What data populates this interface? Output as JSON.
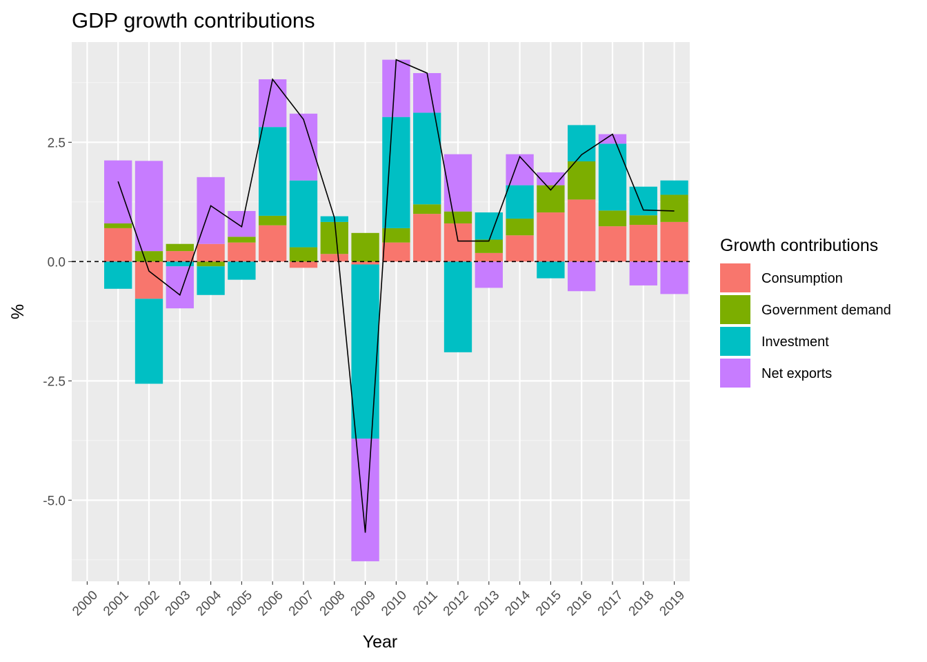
{
  "chart_data": {
    "type": "bar",
    "stacked": true,
    "title": "GDP growth contributions",
    "xlabel": "Year",
    "ylabel": "%",
    "categories": [
      "2000",
      "2001",
      "2002",
      "2003",
      "2004",
      "2005",
      "2006",
      "2007",
      "2008",
      "2009",
      "2010",
      "2011",
      "2012",
      "2013",
      "2014",
      "2015",
      "2016",
      "2017",
      "2018",
      "2019"
    ],
    "x_ticks": [
      "2000",
      "2001",
      "2002",
      "2003",
      "2004",
      "2005",
      "2006",
      "2007",
      "2008",
      "2009",
      "2010",
      "2011",
      "2012",
      "2013",
      "2014",
      "2015",
      "2016",
      "2017",
      "2018",
      "2019"
    ],
    "y_ticks": [
      {
        "value": -5.0,
        "label": "-5.0"
      },
      {
        "value": -2.5,
        "label": "-2.5"
      },
      {
        "value": 0.0,
        "label": "0.0"
      },
      {
        "value": 2.5,
        "label": "2.5"
      }
    ],
    "ylim": [
      -6.7,
      4.6
    ],
    "grid": true,
    "legend": {
      "title": "Growth contributions",
      "position": "right"
    },
    "series": [
      {
        "name": "Consumption",
        "color": "#F8766D",
        "values": [
          null,
          0.7,
          -0.78,
          0.22,
          0.37,
          0.4,
          0.76,
          -0.13,
          0.16,
          -0.06,
          0.4,
          1.0,
          0.8,
          0.18,
          0.55,
          1.03,
          1.3,
          0.74,
          0.77,
          0.83
        ]
      },
      {
        "name": "Government demand",
        "color": "#7CAE00",
        "values": [
          null,
          0.1,
          0.22,
          0.15,
          -0.1,
          0.12,
          0.2,
          0.3,
          0.67,
          0.6,
          0.3,
          0.2,
          0.25,
          0.28,
          0.35,
          0.57,
          0.8,
          0.33,
          0.2,
          0.57
        ]
      },
      {
        "name": "Investment",
        "color": "#00BFC4",
        "values": [
          null,
          -0.57,
          -1.78,
          -0.1,
          -0.6,
          -0.38,
          1.86,
          1.4,
          0.12,
          -3.65,
          2.33,
          1.92,
          -1.9,
          0.57,
          0.7,
          -0.35,
          0.76,
          1.4,
          0.6,
          0.3
        ]
      },
      {
        "name": "Net exports",
        "color": "#C77CFF",
        "values": [
          null,
          1.32,
          1.89,
          -0.88,
          1.4,
          0.54,
          1.0,
          1.4,
          0.0,
          -2.57,
          1.2,
          0.83,
          1.2,
          -0.55,
          0.65,
          0.27,
          -0.62,
          0.2,
          -0.5,
          -0.68
        ]
      }
    ],
    "total_line": {
      "color": "#000000",
      "values": [
        null,
        1.68,
        -0.2,
        -0.7,
        1.17,
        0.73,
        3.82,
        2.98,
        0.92,
        -5.68,
        4.23,
        3.95,
        0.43,
        0.43,
        2.2,
        1.5,
        2.24,
        2.67,
        1.08,
        1.06
      ]
    },
    "reference_line": {
      "y": 0.0,
      "style": "dashed",
      "color": "#000000"
    }
  },
  "colors": {
    "panel_background": "#EBEBEB",
    "grid_major": "#FFFFFF",
    "grid_minor": "#F5F5F5"
  }
}
